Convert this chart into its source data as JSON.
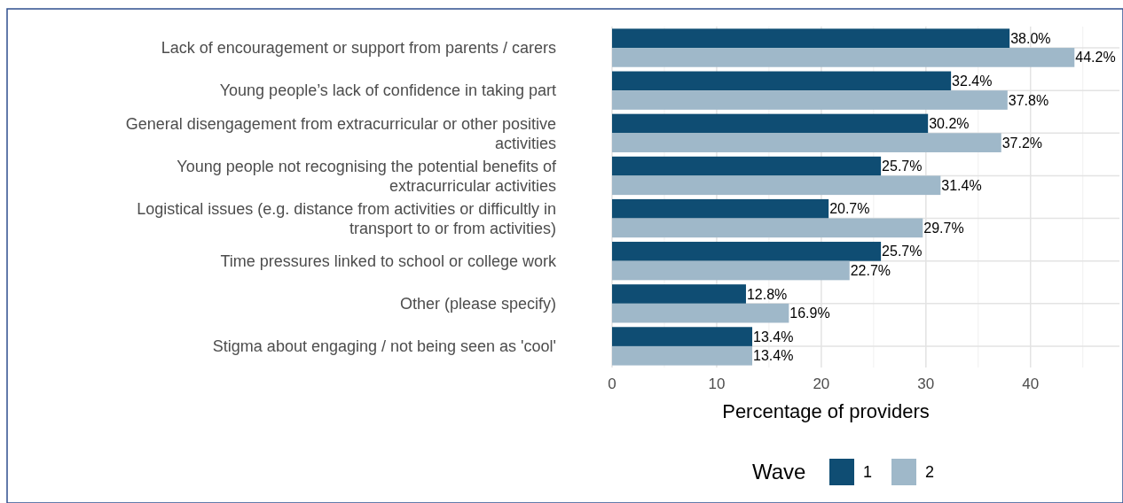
{
  "chart_data": {
    "type": "bar",
    "orientation": "horizontal",
    "xlabel": "Percentage of providers",
    "legend_title": "Wave",
    "legend": "bottom",
    "grid": true,
    "categories": [
      "Lack of encouragement or support from parents / carers",
      "Young people’s lack of confidence in taking part",
      "General disengagement from extracurricular or other positive activities",
      "Young people not recognising the potential benefits of extracurricular activities",
      "Logistical issues (e.g. distance from activities or difficultly in transport to or from activities)",
      "Time pressures linked to school or college work",
      "Other (please specify)",
      "Stigma about engaging / not being seen as 'cool'"
    ],
    "series": [
      {
        "name": "1",
        "color": "#0f4d73",
        "values": [
          38.0,
          32.4,
          30.2,
          25.7,
          20.7,
          25.7,
          12.8,
          13.4
        ],
        "value_labels": [
          "38.0%",
          "32.4%",
          "30.2%",
          "25.7%",
          "20.7%",
          "25.7%",
          "12.8%",
          "13.4%"
        ]
      },
      {
        "name": "2",
        "color": "#9fb8c9",
        "values": [
          44.2,
          37.8,
          37.2,
          31.4,
          29.7,
          22.7,
          16.9,
          13.4
        ],
        "value_labels": [
          "44.2%",
          "37.8%",
          "37.2%",
          "31.4%",
          "29.7%",
          "22.7%",
          "16.9%",
          "13.4%"
        ]
      }
    ],
    "xlim": [
      0,
      48.5
    ],
    "xticks": [
      0,
      {
        "value": 5,
        "label": null
      },
      10,
      {
        "value": 15,
        "label": null
      },
      20,
      {
        "value": 25,
        "label": null
      },
      30,
      {
        "value": 35,
        "label": null
      },
      40,
      {
        "value": 45,
        "label": null
      }
    ]
  }
}
